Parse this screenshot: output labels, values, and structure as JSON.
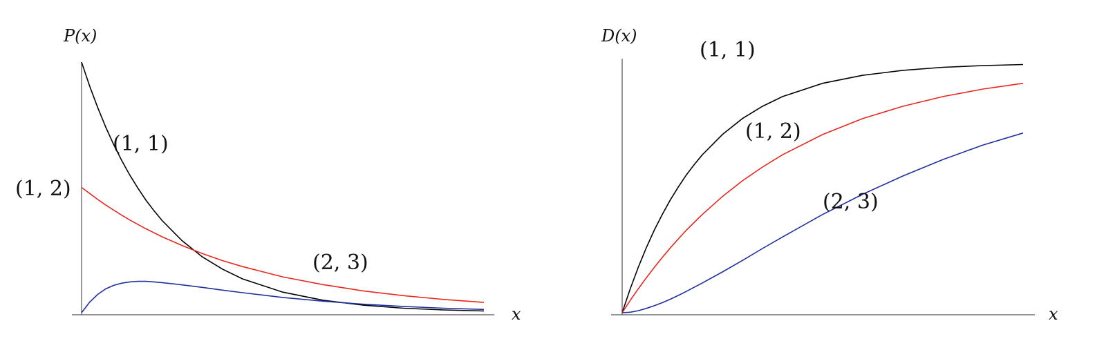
{
  "chart_data": [
    {
      "type": "line",
      "title": "",
      "ylabel": "P(x)",
      "xlabel": "x",
      "xlim": [
        0,
        5
      ],
      "ylim": [
        0,
        1
      ],
      "grid": false,
      "series": [
        {
          "name": "(1, 1)",
          "color": "#000000",
          "x": [
            0,
            0.1,
            0.2,
            0.3,
            0.4,
            0.5,
            0.6,
            0.7,
            0.8,
            0.9,
            1.0,
            1.25,
            1.5,
            1.75,
            2.0,
            2.5,
            3.0,
            3.5,
            4.0,
            4.5,
            5.0
          ],
          "y": [
            1.0,
            0.905,
            0.819,
            0.741,
            0.67,
            0.607,
            0.549,
            0.497,
            0.449,
            0.407,
            0.368,
            0.287,
            0.223,
            0.174,
            0.135,
            0.082,
            0.05,
            0.03,
            0.018,
            0.011,
            0.007
          ]
        },
        {
          "name": "(1, 2)",
          "color": "#e8261e",
          "x": [
            0,
            0.1,
            0.2,
            0.3,
            0.4,
            0.5,
            0.6,
            0.7,
            0.8,
            0.9,
            1.0,
            1.25,
            1.5,
            1.75,
            2.0,
            2.5,
            3.0,
            3.5,
            4.0,
            4.5,
            5.0
          ],
          "y": [
            0.5,
            0.476,
            0.452,
            0.43,
            0.409,
            0.389,
            0.37,
            0.352,
            0.335,
            0.319,
            0.303,
            0.268,
            0.236,
            0.208,
            0.184,
            0.143,
            0.112,
            0.087,
            0.068,
            0.053,
            0.041
          ]
        },
        {
          "name": "(2, 3)",
          "color": "#1e2f9e",
          "x": [
            0,
            0.1,
            0.2,
            0.3,
            0.4,
            0.5,
            0.6,
            0.7,
            0.8,
            0.9,
            1.0,
            1.25,
            1.5,
            1.75,
            2.0,
            2.5,
            3.0,
            3.5,
            4.0,
            4.5,
            5.0
          ],
          "y": [
            0,
            0.042,
            0.073,
            0.095,
            0.109,
            0.118,
            0.123,
            0.125,
            0.125,
            0.123,
            0.12,
            0.111,
            0.101,
            0.09,
            0.08,
            0.061,
            0.046,
            0.034,
            0.025,
            0.018,
            0.013
          ]
        }
      ]
    },
    {
      "type": "line",
      "title": "",
      "ylabel": "D(x)",
      "xlabel": "x",
      "xlim": [
        0,
        5
      ],
      "ylim": [
        0,
        1
      ],
      "grid": false,
      "series": [
        {
          "name": "(1, 1)",
          "color": "#000000",
          "x": [
            0,
            0.1,
            0.2,
            0.3,
            0.4,
            0.5,
            0.6,
            0.7,
            0.8,
            0.9,
            1.0,
            1.25,
            1.5,
            1.75,
            2.0,
            2.5,
            3.0,
            3.5,
            4.0,
            4.5,
            5.0
          ],
          "y": [
            0,
            0.095,
            0.181,
            0.259,
            0.33,
            0.393,
            0.451,
            0.503,
            0.551,
            0.593,
            0.632,
            0.713,
            0.777,
            0.826,
            0.865,
            0.918,
            0.95,
            0.97,
            0.982,
            0.989,
            0.993
          ]
        },
        {
          "name": "(1, 2)",
          "color": "#e8261e",
          "x": [
            0,
            0.1,
            0.2,
            0.3,
            0.4,
            0.5,
            0.6,
            0.7,
            0.8,
            0.9,
            1.0,
            1.25,
            1.5,
            1.75,
            2.0,
            2.5,
            3.0,
            3.5,
            4.0,
            4.5,
            5.0
          ],
          "y": [
            0,
            0.049,
            0.095,
            0.139,
            0.181,
            0.221,
            0.259,
            0.295,
            0.33,
            0.362,
            0.393,
            0.465,
            0.528,
            0.583,
            0.632,
            0.713,
            0.777,
            0.826,
            0.865,
            0.895,
            0.918
          ]
        },
        {
          "name": "(2, 3)",
          "color": "#1e2f9e",
          "x": [
            0,
            0.1,
            0.2,
            0.3,
            0.4,
            0.5,
            0.6,
            0.7,
            0.8,
            0.9,
            1.0,
            1.25,
            1.5,
            1.75,
            2.0,
            2.5,
            3.0,
            3.5,
            4.0,
            4.5,
            5.0
          ],
          "y": [
            0,
            0.002,
            0.008,
            0.017,
            0.028,
            0.04,
            0.054,
            0.069,
            0.085,
            0.102,
            0.119,
            0.163,
            0.209,
            0.257,
            0.303,
            0.393,
            0.474,
            0.547,
            0.613,
            0.671,
            0.719
          ]
        }
      ]
    }
  ]
}
